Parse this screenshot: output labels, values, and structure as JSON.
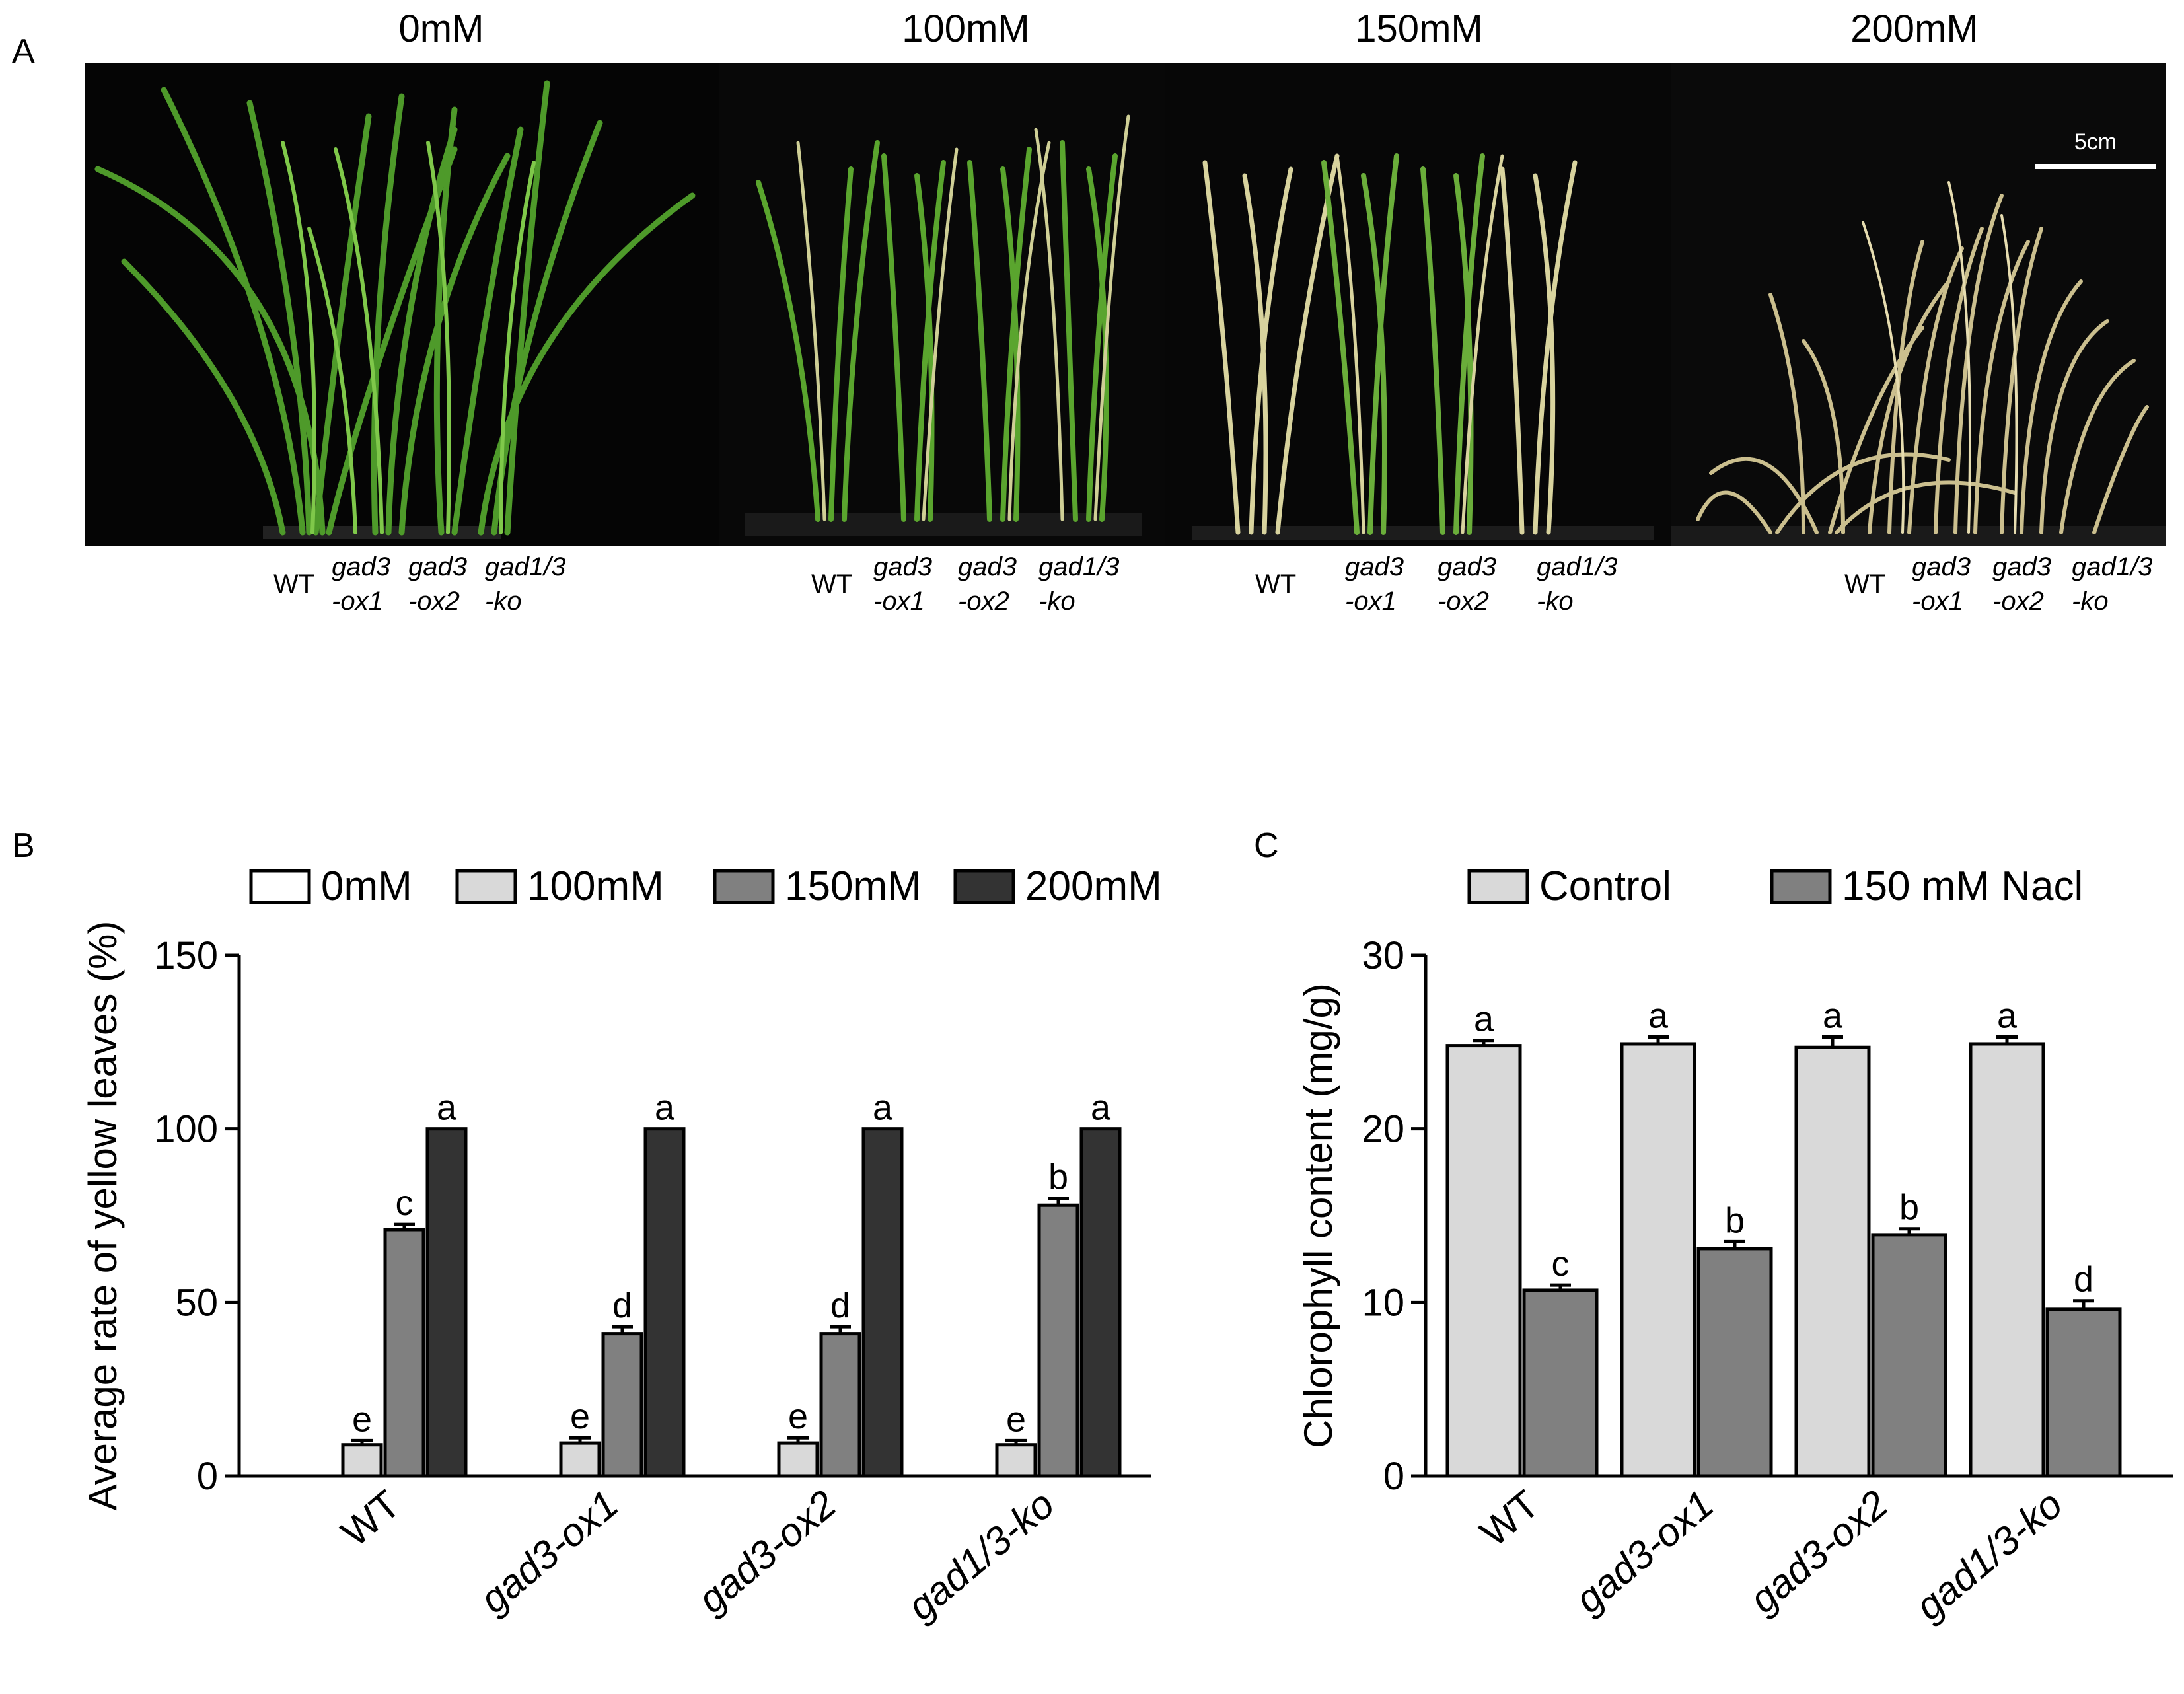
{
  "panel_a": {
    "letter": "A",
    "conditions": [
      "0mM",
      "100mM",
      "150mM",
      "200mM"
    ],
    "scale_bar": "5cm",
    "genotype_labels": [
      {
        "l1": "WT",
        "l2": ""
      },
      {
        "l1": "gad3",
        "l2": "-ox1"
      },
      {
        "l1": "gad3",
        "l2": "-ox2"
      },
      {
        "l1": "gad1/3",
        "l2": "-ko"
      }
    ]
  },
  "chart_data": [
    {
      "panel": "B",
      "type": "bar",
      "title": "",
      "xlabel": "",
      "ylabel": "Average rate of yellow leaves (%)",
      "categories": [
        "WT",
        "gad3-ox1",
        "gad3-ox2",
        "gad1/3-ko"
      ],
      "ylim": [
        0,
        150
      ],
      "yticks": [
        0,
        50,
        100,
        150
      ],
      "legend_position": "top",
      "series": [
        {
          "name": "0mM",
          "color": "#ffffff",
          "values": [
            0,
            0,
            0,
            0
          ],
          "errors": [
            0,
            0,
            0,
            0
          ],
          "letters": [
            "",
            "",
            "",
            ""
          ]
        },
        {
          "name": "100mM",
          "color": "#d9d9d9",
          "values": [
            9,
            9.5,
            9.5,
            9
          ],
          "errors": [
            1.2,
            1.5,
            1.5,
            1.2
          ],
          "letters": [
            "e",
            "e",
            "e",
            "e"
          ]
        },
        {
          "name": "150mM",
          "color": "#808080",
          "values": [
            71,
            41,
            41,
            78
          ],
          "errors": [
            1.5,
            2,
            2,
            2
          ],
          "letters": [
            "c",
            "d",
            "d",
            "b"
          ]
        },
        {
          "name": "200mM",
          "color": "#333333",
          "values": [
            100,
            100,
            100,
            100
          ],
          "errors": [
            0,
            0,
            0,
            0
          ],
          "letters": [
            "a",
            "a",
            "a",
            "a"
          ]
        }
      ]
    },
    {
      "panel": "C",
      "type": "bar",
      "title": "",
      "xlabel": "",
      "ylabel": "Chlorophyll content (mg/g)",
      "categories": [
        "WT",
        "gad3-ox1",
        "gad3-ox2",
        "gad1/3-ko"
      ],
      "ylim": [
        0,
        30
      ],
      "yticks": [
        0,
        10,
        20,
        30
      ],
      "legend_position": "top",
      "series": [
        {
          "name": "Control",
          "color": "#d9d9d9",
          "values": [
            24.8,
            24.9,
            24.7,
            24.9
          ],
          "errors": [
            0.3,
            0.4,
            0.6,
            0.4
          ],
          "letters": [
            "a",
            "a",
            "a",
            "a"
          ]
        },
        {
          "name": "150 mM Nacl",
          "color": "#808080",
          "values": [
            10.7,
            13.1,
            13.9,
            9.6
          ],
          "errors": [
            0.3,
            0.4,
            0.35,
            0.5
          ],
          "letters": [
            "c",
            "b",
            "b",
            "d"
          ]
        }
      ]
    }
  ]
}
